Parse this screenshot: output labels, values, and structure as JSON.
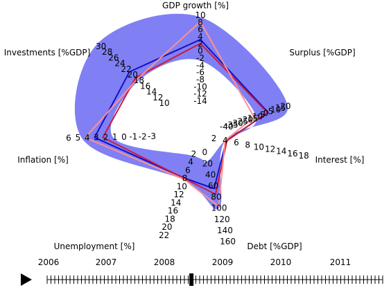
{
  "chart_data": {
    "type": "radar",
    "axes": [
      {
        "name": "GDP growth [%]",
        "ticks": [
          "10",
          "8",
          "6",
          "4",
          "2",
          "0",
          "-2",
          "-4",
          "-6",
          "-8",
          "-10",
          "-12",
          "-14"
        ]
      },
      {
        "name": "Surplus [%GDP]",
        "ticks": [
          "20",
          "15",
          "10",
          "5",
          "0",
          "-5",
          "-10",
          "-15",
          "-20",
          "-25",
          "-30",
          "-35",
          "-40"
        ]
      },
      {
        "name": "Interest [%]",
        "ticks": [
          "2",
          "4",
          "6",
          "8",
          "10",
          "12",
          "14",
          "16",
          "18"
        ]
      },
      {
        "name": "Debt [%GDP]",
        "ticks": [
          "0",
          "20",
          "40",
          "60",
          "80",
          "100",
          "120",
          "140",
          "160"
        ]
      },
      {
        "name": "Unemployment [%]",
        "ticks": [
          "2",
          "4",
          "6",
          "8",
          "10",
          "12",
          "14",
          "16",
          "18",
          "20",
          "22"
        ]
      },
      {
        "name": "Inflation [%]",
        "ticks": [
          "-3",
          "-2",
          "-1",
          "0",
          "1",
          "2",
          "3",
          "4",
          "5",
          "6"
        ]
      },
      {
        "name": "Investments [%GDP]",
        "ticks": [
          "10",
          "12",
          "14",
          "16",
          "18",
          "20",
          "22",
          "24",
          "26",
          "28",
          "30"
        ]
      }
    ],
    "band": {
      "color": "#8080f4",
      "outer": {
        "GDP growth [%]": 9.5,
        "Surplus [%GDP]": 22,
        "Interest [%]": 4,
        "Debt [%GDP]": 100,
        "Unemployment [%]": 8.5,
        "Inflation [%]": 4.6,
        "Investments [%GDP]": 31
      },
      "inner": {
        "GDP growth [%]": -2.7,
        "Surplus [%GDP]": -10,
        "Interest [%]": 4,
        "Debt [%GDP]": 16,
        "Unemployment [%]": 2.5,
        "Inflation [%]": 1.2,
        "Investments [%GDP]": 18
      }
    },
    "series": [
      {
        "color": "#1010cc",
        "values": {
          "GDP growth [%]": 3.2,
          "Surplus [%GDP]": 2.2,
          "Interest [%]": 4.2,
          "Debt [%GDP]": 65,
          "Unemployment [%]": 8,
          "Inflation [%]": 3.2,
          "Investments [%GDP]": 21
        }
      },
      {
        "color": "#cc1a3a",
        "values": {
          "GDP growth [%]": 2.1,
          "Surplus [%GDP]": 1.5,
          "Interest [%]": 4.3,
          "Debt [%GDP]": 75,
          "Unemployment [%]": 8.1,
          "Inflation [%]": 2.3,
          "Investments [%GDP]": 19
        }
      },
      {
        "color": "#ff9090",
        "values": {
          "GDP growth [%]": 8.2,
          "Surplus [%GDP]": -12,
          "Interest [%]": 4,
          "Debt [%GDP]": 97,
          "Unemployment [%]": 8.3,
          "Inflation [%]": 4.2,
          "Investments [%GDP]": 18.5
        }
      }
    ],
    "timeline": {
      "years": [
        "2006",
        "2007",
        "2008",
        "2009",
        "2010",
        "2011"
      ],
      "current_position": 0.43
    }
  },
  "controls": {
    "play_icon": "play-triangle-icon"
  }
}
